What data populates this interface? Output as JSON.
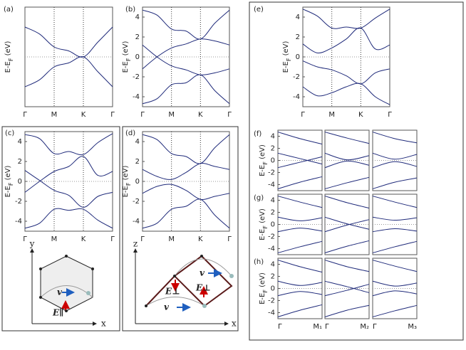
{
  "chart_data": [
    {
      "type": "line",
      "label": "(a)",
      "y_label": [
        "E-E",
        "F",
        " (eV)"
      ],
      "ylim": [
        -5,
        5
      ],
      "zero_line": true,
      "x": [
        0,
        0.5,
        1,
        1.5,
        2,
        2.5,
        3
      ],
      "xticks": [
        {
          "value": 0,
          "label": "Γ"
        },
        {
          "value": 1,
          "label": "M"
        },
        {
          "value": 2,
          "label": "K"
        },
        {
          "value": 3,
          "label": "Γ"
        }
      ],
      "series": [
        {
          "color": "#1f2a7a",
          "values": [
            3,
            2.3,
            1,
            0.6,
            0,
            1.5,
            3
          ]
        },
        {
          "color": "#1f2a7a",
          "values": [
            -3,
            -2.3,
            -1,
            -0.6,
            0,
            -1.5,
            -3
          ]
        }
      ]
    },
    {
      "type": "line",
      "label": "(b)",
      "y_label": [
        "E-E",
        "F",
        " (eV)"
      ],
      "ylim": [
        -5,
        5
      ],
      "yticks": [
        4,
        2,
        0,
        -2,
        -4
      ],
      "zero_line": true,
      "x": [
        0,
        0.5,
        1,
        1.5,
        2,
        2.5,
        3
      ],
      "xticks": [
        {
          "value": 0,
          "label": "Γ"
        },
        {
          "value": 1,
          "label": "M"
        },
        {
          "value": 2,
          "label": "K"
        },
        {
          "value": 3,
          "label": "Γ"
        }
      ],
      "series": [
        {
          "color": "#1f2a7a",
          "values": [
            4.7,
            4.2,
            2.8,
            2.6,
            1.8,
            3.4,
            4.7
          ]
        },
        {
          "color": "#1f2a7a",
          "values": [
            1.2,
            0,
            -0.9,
            -1.3,
            -1.8,
            -1.6,
            -1.2
          ]
        },
        {
          "color": "#1f2a7a",
          "values": [
            -1.2,
            0,
            0.9,
            1.3,
            1.8,
            1.6,
            1.2
          ]
        },
        {
          "color": "#1f2a7a",
          "values": [
            -4.7,
            -4.2,
            -2.8,
            -2.6,
            -1.8,
            -3.4,
            -4.7
          ]
        }
      ]
    },
    {
      "type": "line",
      "label": "(c)",
      "y_label": [
        "E-E",
        "F",
        " (eV)"
      ],
      "ylim": [
        -5,
        5
      ],
      "yticks": [
        4,
        2,
        0,
        -2,
        -4
      ],
      "zero_line": true,
      "x": [
        0,
        0.5,
        1,
        1.5,
        2,
        2.5,
        3
      ],
      "xticks": [
        {
          "value": 0,
          "label": "Γ"
        },
        {
          "value": 1,
          "label": "M"
        },
        {
          "value": 2,
          "label": "K"
        },
        {
          "value": 3,
          "label": "Γ"
        }
      ],
      "series": [
        {
          "color": "#1f2a7a",
          "values": [
            4.7,
            4.3,
            2.8,
            3.0,
            2.7,
            3.9,
            4.8
          ]
        },
        {
          "color": "#1f2a7a",
          "values": [
            1.1,
            0.1,
            -0.9,
            -1.4,
            -2.6,
            -1.5,
            -1.1
          ]
        },
        {
          "color": "#1f2a7a",
          "values": [
            -1.1,
            0,
            1.0,
            1.5,
            2.5,
            0.6,
            1.0
          ]
        },
        {
          "color": "#1f2a7a",
          "values": [
            -4.7,
            -4.2,
            -2.8,
            -2.9,
            -2.8,
            -3.9,
            -4.7
          ]
        }
      ],
      "annotations": [
        "y",
        "x",
        "v",
        "E∥"
      ]
    },
    {
      "type": "line",
      "label": "(d)",
      "y_label": [
        "E-E",
        "F",
        " (eV)"
      ],
      "ylim": [
        -5,
        5
      ],
      "yticks": [
        4,
        2,
        0,
        -2,
        -4
      ],
      "zero_line": true,
      "x": [
        0,
        0.5,
        1,
        1.5,
        2,
        2.5,
        3
      ],
      "xticks": [
        {
          "value": 0,
          "label": "Γ"
        },
        {
          "value": 1,
          "label": "M"
        },
        {
          "value": 2,
          "label": "K"
        },
        {
          "value": 3,
          "label": "Γ"
        }
      ],
      "series": [
        {
          "color": "#1f2a7a",
          "values": [
            4.7,
            4.2,
            2.8,
            2.5,
            1.8,
            3.4,
            4.7
          ]
        },
        {
          "color": "#1f2a7a",
          "values": [
            1.2,
            0.5,
            0.2,
            0.9,
            1.8,
            1.5,
            1.2
          ]
        },
        {
          "color": "#1f2a7a",
          "values": [
            -1.2,
            -0.5,
            -0.3,
            -0.9,
            -1.8,
            -1.5,
            -1.2
          ]
        },
        {
          "color": "#1f2a7a",
          "values": [
            -4.7,
            -4.2,
            -2.8,
            -2.5,
            -1.8,
            -3.4,
            -4.7
          ]
        }
      ],
      "annotations": [
        "z",
        "x",
        "v",
        "v",
        "E⊥",
        "E⊥"
      ]
    },
    {
      "type": "line",
      "label": "(e)",
      "y_label": [
        "E-E",
        "F",
        " (eV)"
      ],
      "ylim": [
        -5,
        5
      ],
      "yticks": [
        4,
        2,
        0,
        -2,
        -4
      ],
      "zero_line": true,
      "x": [
        0,
        0.5,
        1,
        1.5,
        2,
        2.5,
        3
      ],
      "xticks": [
        {
          "value": 0,
          "label": "Γ"
        },
        {
          "value": 1,
          "label": "M"
        },
        {
          "value": 2,
          "label": "K"
        },
        {
          "value": 3,
          "label": "Γ"
        }
      ],
      "series": [
        {
          "color": "#1f2a7a",
          "values": [
            4.8,
            4.1,
            2.9,
            3.0,
            2.9,
            3.9,
            4.8
          ]
        },
        {
          "color": "#1f2a7a",
          "values": [
            1.3,
            0.4,
            0.9,
            1.8,
            2.9,
            0.8,
            1.2
          ]
        },
        {
          "color": "#1f2a7a",
          "values": [
            -0.4,
            -1.0,
            -1.3,
            -1.9,
            -2.7,
            -1.6,
            -1.2
          ]
        },
        {
          "color": "#1f2a7a",
          "values": [
            -3.0,
            -3.9,
            -3.6,
            -3.0,
            -2.7,
            -4.0,
            -4.8
          ]
        }
      ]
    },
    {
      "type": "multi",
      "label": "(f)",
      "y_label": [
        "E-E",
        "F",
        " (eV)"
      ],
      "ylim": [
        -5,
        5
      ],
      "yticks": [
        4,
        2,
        0,
        -2,
        -4
      ],
      "zero_line": true,
      "subpanels": [
        {
          "x": [
            0,
            0.5,
            1
          ],
          "series": [
            {
              "color": "#1f2a7a",
              "values": [
                4.7,
                3.6,
                2.7
              ]
            },
            {
              "color": "#1f2a7a",
              "values": [
                1.2,
                0.3,
                -0.6
              ]
            },
            {
              "color": "#1f2a7a",
              "values": [
                -1.2,
                -0.3,
                0.6
              ]
            },
            {
              "color": "#1f2a7a",
              "values": [
                -4.7,
                -3.6,
                -2.7
              ]
            }
          ]
        },
        {
          "x": [
            0,
            0.5,
            1
          ],
          "series": [
            {
              "color": "#1f2a7a",
              "values": [
                4.7,
                3.7,
                2.8
              ]
            },
            {
              "color": "#1f2a7a",
              "values": [
                1.2,
                0.1,
                0.8
              ]
            },
            {
              "color": "#1f2a7a",
              "values": [
                -1.2,
                -0.1,
                -0.8
              ]
            },
            {
              "color": "#1f2a7a",
              "values": [
                -4.7,
                -3.7,
                -2.8
              ]
            }
          ]
        },
        {
          "x": [
            0,
            0.5,
            1
          ],
          "series": [
            {
              "color": "#1f2a7a",
              "values": [
                4.7,
                3.6,
                2.9
              ]
            },
            {
              "color": "#1f2a7a",
              "values": [
                1.2,
                0.2,
                1.0
              ]
            },
            {
              "color": "#1f2a7a",
              "values": [
                -1.2,
                -0.2,
                -1.0
              ]
            },
            {
              "color": "#1f2a7a",
              "values": [
                -4.7,
                -3.6,
                -2.9
              ]
            }
          ]
        }
      ]
    },
    {
      "type": "multi",
      "label": "(g)",
      "y_label": [
        "E-E",
        "F",
        " (eV)"
      ],
      "ylim": [
        -5,
        5
      ],
      "yticks": [
        4,
        2,
        0,
        -2,
        -4
      ],
      "zero_line": true,
      "subpanels": [
        {
          "x": [
            0,
            0.5,
            1
          ],
          "series": [
            {
              "color": "#1f2a7a",
              "values": [
                4.7,
                3.7,
                2.8
              ]
            },
            {
              "color": "#1f2a7a",
              "values": [
                1.2,
                0.6,
                1.1
              ]
            },
            {
              "color": "#1f2a7a",
              "values": [
                -1.2,
                -0.6,
                -1.1
              ]
            },
            {
              "color": "#1f2a7a",
              "values": [
                -4.7,
                -3.7,
                -2.8
              ]
            }
          ]
        },
        {
          "x": [
            0,
            0.5,
            1
          ],
          "series": [
            {
              "color": "#1f2a7a",
              "values": [
                4.7,
                3.6,
                2.7
              ]
            },
            {
              "color": "#1f2a7a",
              "values": [
                1.2,
                0.1,
                -0.8
              ]
            },
            {
              "color": "#1f2a7a",
              "values": [
                -1.2,
                -0.1,
                0.8
              ]
            },
            {
              "color": "#1f2a7a",
              "values": [
                -4.7,
                -3.6,
                -2.7
              ]
            }
          ]
        },
        {
          "x": [
            0,
            0.5,
            1
          ],
          "series": [
            {
              "color": "#1f2a7a",
              "values": [
                4.7,
                3.7,
                2.8
              ]
            },
            {
              "color": "#1f2a7a",
              "values": [
                1.2,
                0.7,
                1.1
              ]
            },
            {
              "color": "#1f2a7a",
              "values": [
                -1.2,
                -0.7,
                -1.1
              ]
            },
            {
              "color": "#1f2a7a",
              "values": [
                -4.7,
                -3.7,
                -2.8
              ]
            }
          ]
        }
      ]
    },
    {
      "type": "multi",
      "label": "(h)",
      "y_label": [
        "E-E",
        "F",
        " (eV)"
      ],
      "ylim": [
        -5,
        5
      ],
      "yticks": [
        4,
        2,
        0,
        -2,
        -4
      ],
      "zero_line": true,
      "subpanels": [
        {
          "x": [
            0,
            0.5,
            1
          ],
          "xticks": [
            {
              "value": 0,
              "label": "Γ"
            },
            {
              "value": 1,
              "label": "M₁"
            }
          ],
          "series": [
            {
              "color": "#1f2a7a",
              "values": [
                4.7,
                3.6,
                2.7
              ]
            },
            {
              "color": "#1f2a7a",
              "values": [
                1.2,
                0.5,
                1.0
              ]
            },
            {
              "color": "#1f2a7a",
              "values": [
                -1.2,
                -0.5,
                -1.0
              ]
            },
            {
              "color": "#1f2a7a",
              "values": [
                -4.7,
                -3.6,
                -2.7
              ]
            }
          ]
        },
        {
          "x": [
            0,
            0.5,
            1
          ],
          "xticks": [
            {
              "value": 0,
              "label": "Γ"
            },
            {
              "value": 1,
              "label": "M₂"
            }
          ],
          "series": [
            {
              "color": "#1f2a7a",
              "values": [
                4.7,
                3.6,
                2.8
              ]
            },
            {
              "color": "#1f2a7a",
              "values": [
                1.2,
                0.3,
                -0.7
              ]
            },
            {
              "color": "#1f2a7a",
              "values": [
                -1.2,
                -0.3,
                0.7
              ]
            },
            {
              "color": "#1f2a7a",
              "values": [
                -4.7,
                -3.6,
                -2.8
              ]
            }
          ]
        },
        {
          "x": [
            0,
            0.5,
            1
          ],
          "xticks": [
            {
              "value": 0,
              "label": "Γ"
            },
            {
              "value": 1,
              "label": "M₃"
            }
          ],
          "series": [
            {
              "color": "#1f2a7a",
              "values": [
                4.7,
                3.7,
                2.8
              ]
            },
            {
              "color": "#1f2a7a",
              "values": [
                1.2,
                0.4,
                0.9
              ]
            },
            {
              "color": "#1f2a7a",
              "values": [
                -1.2,
                -0.4,
                -0.9
              ]
            },
            {
              "color": "#1f2a7a",
              "values": [
                -4.7,
                -3.7,
                -2.8
              ]
            }
          ]
        }
      ]
    }
  ]
}
